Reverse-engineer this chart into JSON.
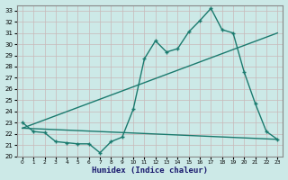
{
  "xlabel": "Humidex (Indice chaleur)",
  "xlim": [
    -0.5,
    23.5
  ],
  "ylim": [
    20,
    33.5
  ],
  "yticks": [
    20,
    21,
    22,
    23,
    24,
    25,
    26,
    27,
    28,
    29,
    30,
    31,
    32,
    33
  ],
  "xticks": [
    0,
    1,
    2,
    3,
    4,
    5,
    6,
    7,
    8,
    9,
    10,
    11,
    12,
    13,
    14,
    15,
    16,
    17,
    18,
    19,
    20,
    21,
    22,
    23
  ],
  "line_color": "#1a7a6e",
  "bg_color": "#cce9e7",
  "grid_color": "#b0d4d2",
  "line1_x": [
    0,
    1,
    2,
    3,
    4,
    5,
    6,
    7,
    8,
    9,
    10,
    11,
    12,
    13,
    14,
    15,
    16,
    17,
    18,
    19,
    20,
    21,
    22,
    23
  ],
  "line1_y": [
    23.0,
    22.2,
    22.1,
    21.3,
    21.2,
    21.1,
    21.1,
    20.3,
    21.3,
    21.7,
    24.2,
    28.7,
    30.3,
    29.3,
    29.6,
    31.1,
    32.1,
    33.2,
    31.3,
    31.0,
    27.5,
    24.7,
    22.2,
    21.5
  ],
  "line2_x": [
    0,
    23
  ],
  "line2_y": [
    22.5,
    31.0
  ],
  "line3_x": [
    0,
    23
  ],
  "line3_y": [
    22.5,
    21.5
  ]
}
